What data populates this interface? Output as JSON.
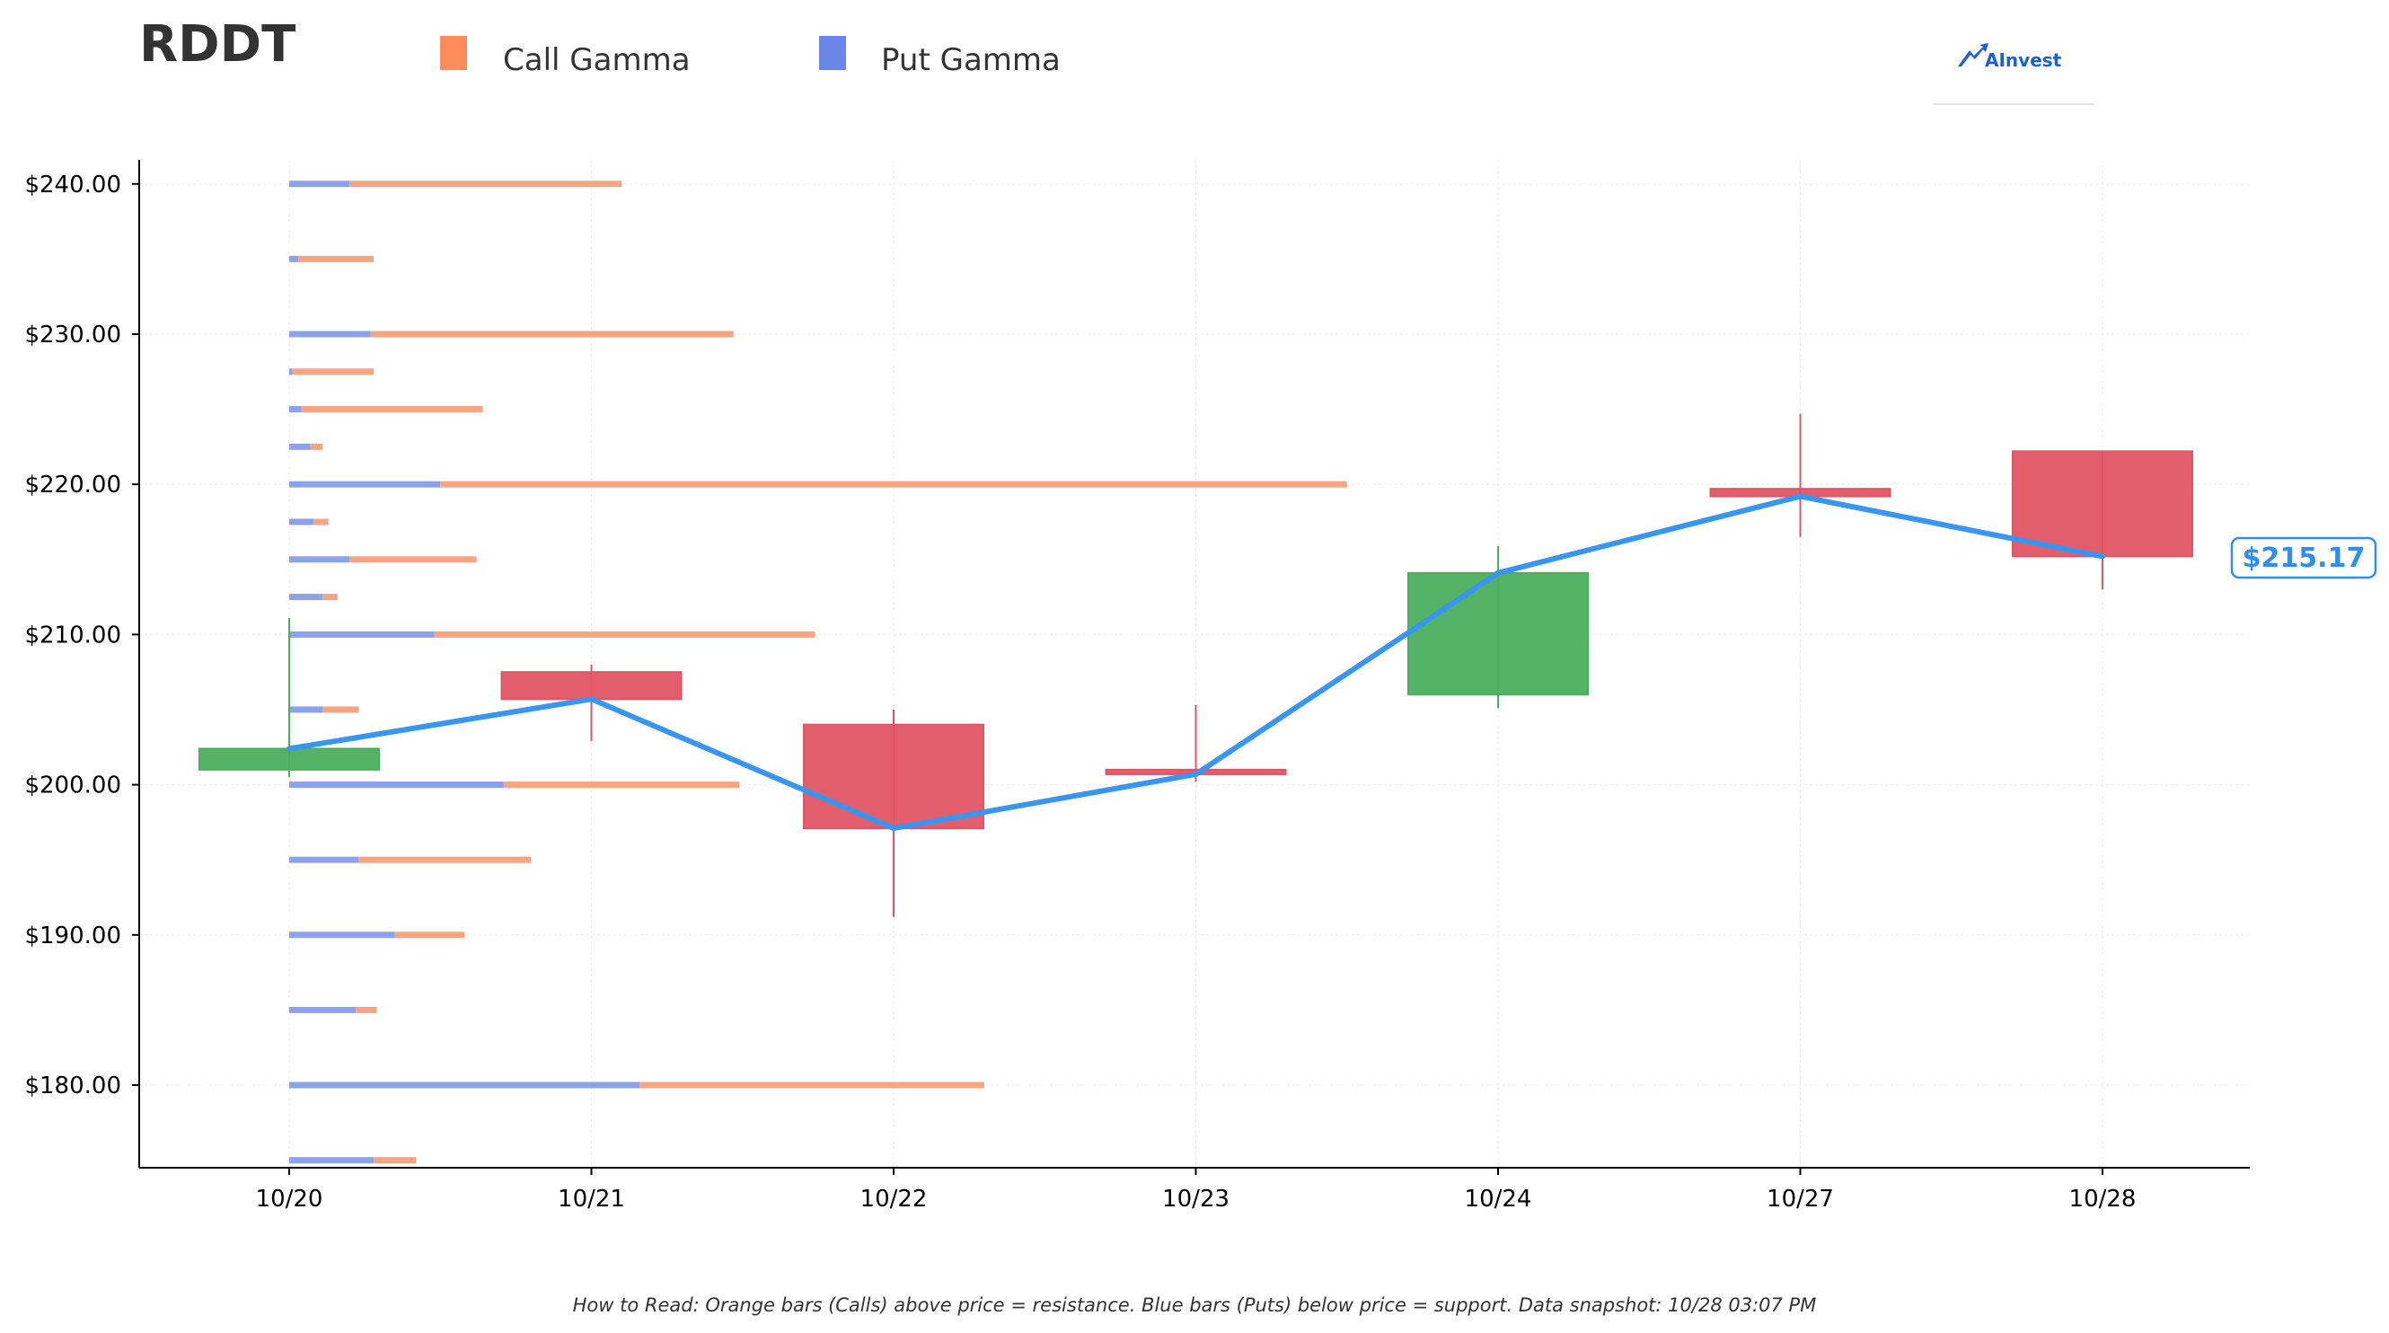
{
  "chart_data": {
    "type": "candlestick",
    "title": "RDDT",
    "brand": "AInvest",
    "legend": [
      {
        "name": "Call Gamma",
        "color": "#ff8c5a"
      },
      {
        "name": "Put Gamma",
        "color": "#6a86e6"
      }
    ],
    "colors": {
      "call_bar": "#f7a482",
      "put_bar": "#8ca3ea",
      "up_candle": "#4caf5f",
      "down_candle": "#e05565",
      "price_line": "#3896f0",
      "price_tag": "#2e8ff0"
    },
    "x_categories": [
      "10/20",
      "10/21",
      "10/22",
      "10/23",
      "10/24",
      "10/27",
      "10/28"
    ],
    "y_ticks": [
      {
        "value": 180,
        "label": "$180.00"
      },
      {
        "value": 190,
        "label": "$190.00"
      },
      {
        "value": 200,
        "label": "$200.00"
      },
      {
        "value": 210,
        "label": "$210.00"
      },
      {
        "value": 220,
        "label": "$220.00"
      },
      {
        "value": 230,
        "label": "$230.00"
      },
      {
        "value": 240,
        "label": "$240.00"
      }
    ],
    "ylim": [
      174.5,
      241.6
    ],
    "grid": true,
    "candles": [
      {
        "date": "10/20",
        "open": 201.0,
        "high": 211.1,
        "low": 200.5,
        "close": 202.4
      },
      {
        "date": "10/21",
        "open": 207.5,
        "high": 208.0,
        "low": 202.9,
        "close": 205.7
      },
      {
        "date": "10/22",
        "open": 204.0,
        "high": 205.0,
        "low": 191.2,
        "close": 197.1
      },
      {
        "date": "10/23",
        "open": 201.0,
        "high": 205.3,
        "low": 200.2,
        "close": 200.7
      },
      {
        "date": "10/24",
        "open": 206.0,
        "high": 215.9,
        "low": 205.1,
        "close": 214.1
      },
      {
        "date": "10/27",
        "open": 219.7,
        "high": 224.7,
        "low": 216.5,
        "close": 219.2
      },
      {
        "date": "10/28",
        "open": 222.2,
        "high": 222.2,
        "low": 213.0,
        "close": 215.2
      }
    ],
    "price_line": [
      202.4,
      205.7,
      197.1,
      200.7,
      214.1,
      219.2,
      215.2
    ],
    "current_price_label": "$215.17",
    "gamma_units": "days",
    "gamma_bars": [
      {
        "strike": 175,
        "put": 0.28,
        "call": 0.14
      },
      {
        "strike": 180,
        "put": 1.16,
        "call": 1.14
      },
      {
        "strike": 185,
        "put": 0.22,
        "call": 0.07
      },
      {
        "strike": 190,
        "put": 0.35,
        "call": 0.23
      },
      {
        "strike": 195,
        "put": 0.23,
        "call": 0.57
      },
      {
        "strike": 200,
        "put": 0.71,
        "call": 0.78
      },
      {
        "strike": 205,
        "put": 0.11,
        "call": 0.12
      },
      {
        "strike": 210,
        "put": 0.48,
        "call": 1.26
      },
      {
        "strike": 212.5,
        "put": 0.11,
        "call": 0.05
      },
      {
        "strike": 215,
        "put": 0.2,
        "call": 0.42
      },
      {
        "strike": 217.5,
        "put": 0.08,
        "call": 0.05
      },
      {
        "strike": 220,
        "put": 0.5,
        "call": 3.0
      },
      {
        "strike": 222.5,
        "put": 0.07,
        "call": 0.04
      },
      {
        "strike": 225,
        "put": 0.04,
        "call": 0.6
      },
      {
        "strike": 227.5,
        "put": 0.01,
        "call": 0.27
      },
      {
        "strike": 230,
        "put": 0.27,
        "call": 1.2
      },
      {
        "strike": 235,
        "put": 0.03,
        "call": 0.25
      },
      {
        "strike": 240,
        "put": 0.2,
        "call": 0.9
      }
    ],
    "footnote": "How to Read: Orange bars (Calls) above price = resistance. Blue bars (Puts) below price = support. Data snapshot: 10/28 03:07 PM"
  }
}
